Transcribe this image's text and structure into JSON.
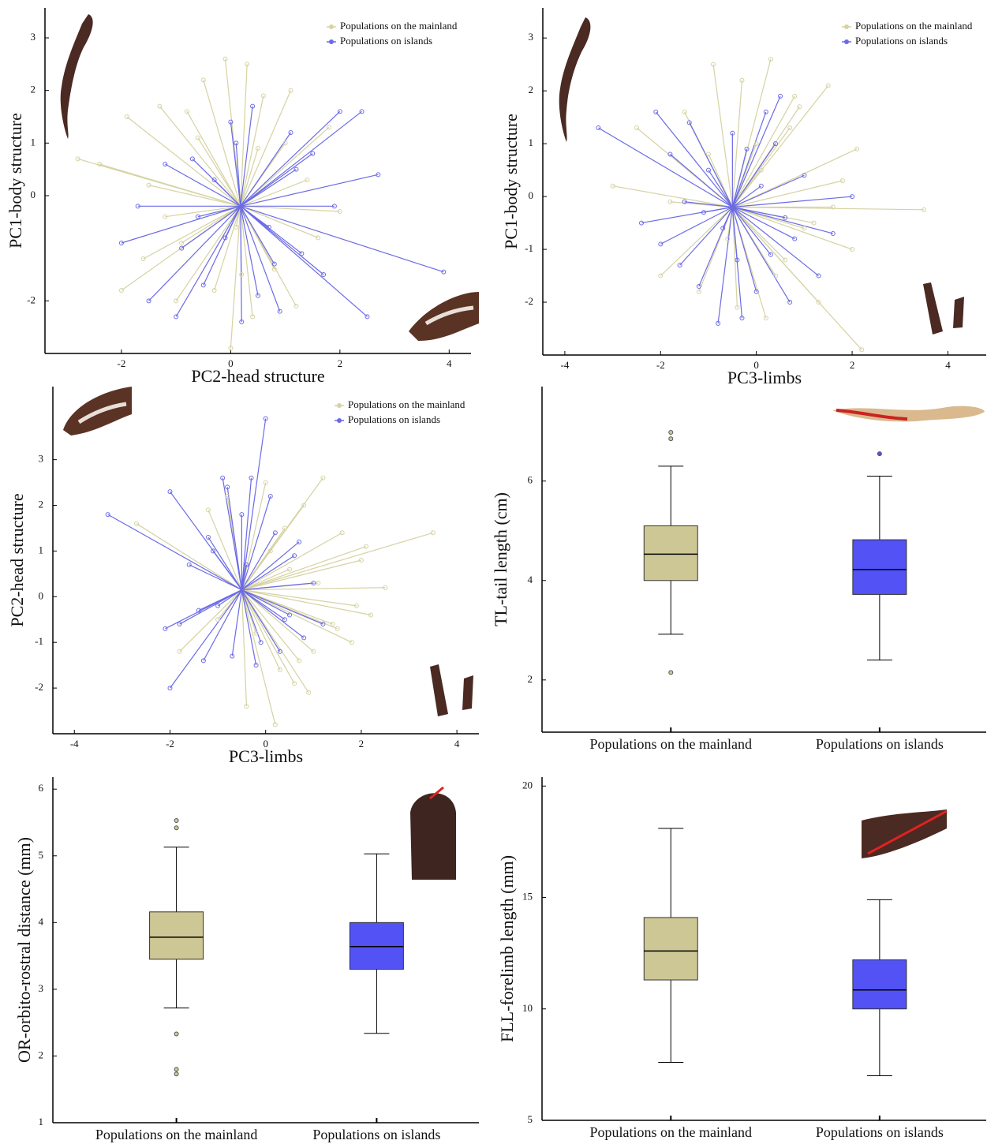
{
  "chart_data": [
    {
      "type": "star",
      "x_label": "PC2-head structure",
      "y_label": "PC1-body structure",
      "xlim": [
        -3.4,
        4.4
      ],
      "ylim": [
        -3.0,
        3.57
      ],
      "xticks": [
        -2,
        0,
        2,
        4
      ],
      "yticks": [
        -2,
        0,
        1,
        2,
        3
      ],
      "center": [
        0.18,
        -0.2
      ],
      "legend": "upper right",
      "series": [
        {
          "name": "Populations on the mainland",
          "color": "#d6d2a2",
          "x": [
            -2.8,
            -2.4,
            -1.9,
            -1.6,
            -1.3,
            -1.0,
            -0.8,
            -0.5,
            -0.3,
            -0.1,
            0.0,
            0.1,
            0.3,
            0.4,
            0.6,
            0.8,
            1.0,
            1.2,
            1.4,
            1.6,
            1.8,
            2.0,
            -2.0,
            -1.5,
            -0.9,
            -0.6,
            0.2,
            0.5,
            1.1,
            -1.2
          ],
          "y": [
            0.7,
            0.6,
            1.5,
            -1.2,
            1.7,
            -2.0,
            1.6,
            2.2,
            -1.8,
            2.6,
            -2.9,
            -0.6,
            2.5,
            -2.3,
            1.9,
            -1.4,
            1.0,
            -2.1,
            0.3,
            -0.8,
            1.3,
            -0.3,
            -1.8,
            0.2,
            -0.9,
            1.1,
            -1.5,
            0.9,
            2.0,
            -0.4
          ]
        },
        {
          "name": "Populations on islands",
          "color": "#6b6be6",
          "x": [
            -2.0,
            -1.7,
            -1.2,
            -1.0,
            -0.9,
            -0.7,
            -0.5,
            -0.3,
            -0.1,
            0.0,
            0.2,
            0.4,
            0.5,
            0.7,
            0.9,
            1.1,
            1.3,
            1.5,
            1.7,
            1.9,
            2.0,
            2.4,
            2.5,
            2.7,
            3.9,
            -1.5,
            -0.6,
            0.1,
            0.8,
            1.2
          ],
          "y": [
            -0.9,
            -0.2,
            0.6,
            -2.3,
            -1.0,
            0.7,
            -1.7,
            0.3,
            -0.8,
            1.4,
            -2.4,
            1.7,
            -1.9,
            -0.6,
            -2.2,
            1.2,
            -1.1,
            0.8,
            -1.5,
            -0.2,
            1.6,
            1.6,
            -2.3,
            0.4,
            -1.45,
            -2.0,
            -0.4,
            1.0,
            -1.3,
            0.5
          ]
        }
      ]
    },
    {
      "type": "star",
      "x_label": "PC3-limbs",
      "y_label": "PC1-body structure",
      "xlim": [
        -4.46,
        4.8
      ],
      "ylim": [
        -3.0,
        3.57
      ],
      "xticks": [
        -4,
        -2,
        0,
        2,
        4
      ],
      "yticks": [
        -2,
        -1,
        0,
        1,
        2,
        3
      ],
      "center": [
        -0.5,
        -0.2
      ],
      "legend": "upper right",
      "series": [
        {
          "name": "Populations on the mainland",
          "color": "#d6d2a2",
          "x": [
            -3.0,
            -2.5,
            -2.0,
            -1.5,
            -1.2,
            -0.9,
            -0.6,
            -0.3,
            0.0,
            0.3,
            0.6,
            0.9,
            1.2,
            1.5,
            1.8,
            2.1,
            2.2,
            3.5,
            -1.8,
            -0.4,
            0.1,
            0.4,
            0.7,
            1.0,
            1.6,
            2.0,
            -1.0,
            0.2,
            0.8,
            1.3
          ],
          "y": [
            0.2,
            1.3,
            -1.5,
            1.6,
            -1.8,
            2.5,
            -0.8,
            2.2,
            1.0,
            2.6,
            -1.2,
            1.7,
            -0.5,
            2.1,
            0.3,
            0.9,
            -2.9,
            -0.25,
            -0.1,
            -2.1,
            0.5,
            -1.5,
            1.3,
            -0.6,
            -0.2,
            -1.0,
            0.8,
            -2.3,
            1.9,
            -2.0
          ]
        },
        {
          "name": "Populations on islands",
          "color": "#6b6be6",
          "x": [
            -3.3,
            -2.1,
            -2.0,
            -1.8,
            -1.6,
            -1.4,
            -1.2,
            -1.0,
            -0.8,
            -0.7,
            -0.5,
            -0.3,
            -0.2,
            0.0,
            0.2,
            0.3,
            0.5,
            0.7,
            0.8,
            1.0,
            1.3,
            1.6,
            2.0,
            -1.1,
            -0.4,
            0.1,
            0.6,
            -2.4,
            -1.5,
            0.4
          ],
          "y": [
            1.3,
            1.6,
            -0.9,
            0.8,
            -1.3,
            1.4,
            -1.7,
            0.5,
            -2.4,
            -0.6,
            1.2,
            -2.3,
            0.9,
            -1.8,
            1.6,
            -1.1,
            1.9,
            -2.0,
            -0.8,
            0.4,
            -1.5,
            -0.7,
            0.0,
            -0.3,
            -1.2,
            0.2,
            -0.4,
            -0.5,
            -0.1,
            1.0
          ]
        }
      ]
    },
    {
      "type": "star",
      "x_label": "PC3-limbs",
      "y_label": "PC2-head structure",
      "xlim": [
        -4.45,
        4.46
      ],
      "ylim": [
        -3.0,
        4.6
      ],
      "xticks": [
        -4,
        -2,
        0,
        2,
        4
      ],
      "yticks": [
        -2,
        -1,
        0,
        1,
        2,
        3
      ],
      "center": [
        -0.5,
        0.15
      ],
      "legend": "upper right",
      "series": [
        {
          "name": "Populations on the mainland",
          "color": "#d6d2a2",
          "x": [
            -2.7,
            -1.8,
            -1.2,
            -0.8,
            -0.4,
            0.0,
            0.2,
            0.4,
            0.6,
            0.8,
            1.0,
            1.2,
            1.4,
            1.6,
            1.8,
            2.0,
            2.2,
            2.5,
            3.5,
            0.3,
            -0.2,
            0.5,
            0.9,
            1.1,
            1.5,
            1.9,
            -1.0,
            0.1,
            0.7,
            2.1
          ],
          "y": [
            1.6,
            -1.2,
            1.9,
            2.2,
            -2.4,
            2.5,
            -2.8,
            1.5,
            -1.9,
            2.0,
            -1.2,
            2.6,
            -0.6,
            1.4,
            -1.0,
            0.8,
            -0.4,
            0.2,
            1.4,
            -1.6,
            -0.8,
            0.6,
            -2.1,
            0.3,
            -0.7,
            -0.2,
            -0.5,
            1.0,
            -1.4,
            1.1
          ]
        },
        {
          "name": "Populations on islands",
          "color": "#6b6be6",
          "x": [
            -3.3,
            -2.0,
            -2.0,
            -1.8,
            -1.6,
            -1.3,
            -1.1,
            -1.0,
            -0.9,
            -0.7,
            -0.5,
            -0.3,
            -0.2,
            0.0,
            0.2,
            0.3,
            0.6,
            0.8,
            1.0,
            1.2,
            -0.4,
            -1.4,
            -2.1,
            0.1,
            0.5,
            -0.8,
            -1.2,
            0.7,
            -0.1,
            0.4
          ],
          "y": [
            1.8,
            2.3,
            -2.0,
            -0.6,
            0.7,
            -1.4,
            1.0,
            -0.2,
            2.6,
            -1.3,
            1.8,
            2.6,
            -1.5,
            3.9,
            1.4,
            -1.2,
            0.9,
            -0.9,
            0.3,
            -0.6,
            0.7,
            -0.3,
            -0.7,
            2.2,
            -0.4,
            2.4,
            1.3,
            1.2,
            -1.0,
            -0.5
          ]
        }
      ]
    },
    {
      "type": "box",
      "y_label": "TL-tail length (cm)",
      "ylim": [
        0.95,
        7.9
      ],
      "yticks": [
        2,
        4,
        6
      ],
      "categories": [
        "Populations on the mainland",
        "Populations on islands"
      ],
      "colors": [
        "#cdc795",
        "#5252f5"
      ],
      "stats": [
        {
          "min": 2.92,
          "q1": 4.0,
          "median": 4.53,
          "q3": 5.1,
          "max": 6.3,
          "outliers": [
            6.98,
            6.85,
            2.15
          ]
        },
        {
          "min": 2.4,
          "q1": 3.72,
          "median": 4.22,
          "q3": 4.82,
          "max": 6.1,
          "outliers": [
            6.55
          ]
        }
      ]
    },
    {
      "type": "box",
      "y_label": "OR-orbito-rostral distance (mm)",
      "ylim": [
        1,
        6.18
      ],
      "yticks": [
        1,
        2,
        3,
        4,
        5,
        6
      ],
      "categories": [
        "Populations on the mainland",
        "Populations on islands"
      ],
      "colors": [
        "#cdc795",
        "#5252f5"
      ],
      "stats": [
        {
          "min": 2.72,
          "q1": 3.45,
          "median": 3.78,
          "q3": 4.16,
          "max": 5.13,
          "outliers": [
            5.53,
            5.42,
            2.33,
            1.8,
            1.73
          ]
        },
        {
          "min": 2.34,
          "q1": 3.3,
          "median": 3.64,
          "q3": 4.0,
          "max": 5.03,
          "outliers": []
        }
      ]
    },
    {
      "type": "box",
      "y_label": "FLL-forelimb length (mm)",
      "ylim": [
        5,
        20.4
      ],
      "yticks": [
        5,
        10,
        15,
        20
      ],
      "categories": [
        "Populations on the mainland",
        "Populations on islands"
      ],
      "colors": [
        "#cdc795",
        "#5252f5"
      ],
      "stats": [
        {
          "min": 7.6,
          "q1": 11.3,
          "median": 12.6,
          "q3": 14.1,
          "max": 18.1,
          "outliers": []
        },
        {
          "min": 7.0,
          "q1": 10.0,
          "median": 10.85,
          "q3": 12.2,
          "max": 14.9,
          "outliers": []
        }
      ]
    }
  ]
}
